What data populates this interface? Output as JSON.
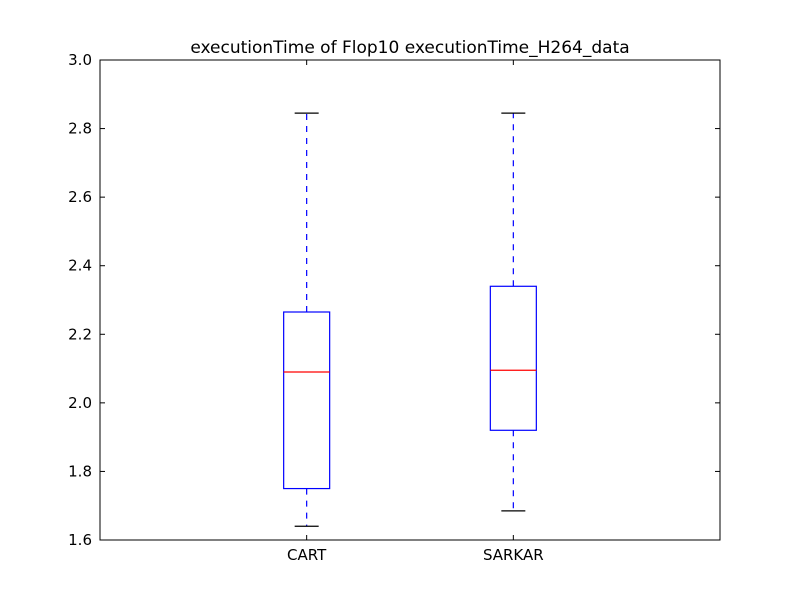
{
  "chart_data": {
    "type": "boxplot",
    "title": "executionTime of Flop10 executionTime_H264_data",
    "xlabel": "",
    "ylabel": "",
    "categories": [
      "CART",
      "SARKAR"
    ],
    "ylim": [
      1.6,
      3.0
    ],
    "yticks": [
      "1.6",
      "1.8",
      "2.0",
      "2.2",
      "2.4",
      "2.6",
      "2.8",
      "3.0"
    ],
    "series": [
      {
        "category": "CART",
        "whisker_low": 1.64,
        "q1": 1.75,
        "median": 2.09,
        "q3": 2.265,
        "whisker_high": 2.845
      },
      {
        "category": "SARKAR",
        "whisker_low": 1.685,
        "q1": 1.92,
        "median": 2.095,
        "q3": 2.34,
        "whisker_high": 2.845
      }
    ],
    "grid": false,
    "colors": {
      "box": "#0000ff",
      "median": "#ff0000",
      "whisker": "#0000ff",
      "cap": "#000000",
      "axes": "#000000"
    }
  }
}
